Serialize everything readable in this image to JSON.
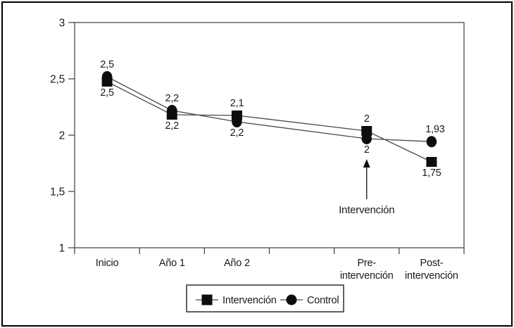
{
  "figure": {
    "background": "#ffffff",
    "border_color": "#000000"
  },
  "chart_data": {
    "type": "line",
    "title": "",
    "xlabel": "",
    "ylabel": "",
    "grid": false,
    "legend_position": "bottom",
    "ylim": [
      1,
      3
    ],
    "yticks": [
      {
        "value": 3,
        "label": "3"
      },
      {
        "value": 2.5,
        "label": "2,5"
      },
      {
        "value": 2,
        "label": "2"
      },
      {
        "value": 1.5,
        "label": "1,5"
      },
      {
        "value": 1,
        "label": "1"
      }
    ],
    "categories": [
      "Inicio",
      "Año 1",
      "Año 2",
      "",
      "Pre-intervención",
      "Post-intervención"
    ],
    "xtick_display": [
      [
        "Inicio"
      ],
      [
        "Año 1"
      ],
      [
        "Año 2"
      ],
      [],
      [
        "Pre-",
        "intervención"
      ],
      [
        "Post-",
        "intervención"
      ]
    ],
    "series": [
      {
        "name": "Control",
        "marker": "circle",
        "label_position": "above",
        "values": [
          2.5,
          2.2,
          2.1,
          null,
          2.0,
          1.93
        ],
        "point_labels": [
          "2,5",
          "2,2",
          "2,1",
          null,
          "2",
          "1,93"
        ]
      },
      {
        "name": "Intervención",
        "marker": "square",
        "label_position": "below",
        "values": [
          2.5,
          2.2,
          2.2,
          null,
          2.0,
          1.75
        ],
        "point_labels": [
          "2,5",
          "2,2",
          "2,2",
          null,
          "2",
          "1,75"
        ]
      }
    ],
    "annotation": {
      "text": "Intervención",
      "target_category": "Pre-intervención",
      "shape": "up-arrow"
    },
    "legend": [
      {
        "label": "Intervención",
        "marker": "square"
      },
      {
        "label": "Control",
        "marker": "circle"
      }
    ],
    "colors": {
      "line": "#4a4a4a",
      "marker": "#0d0d0d",
      "axis": "#4a4a4a",
      "text": "#1a1a1a",
      "legend_border": "#2e2e2e",
      "figure_border": "#000000"
    }
  }
}
